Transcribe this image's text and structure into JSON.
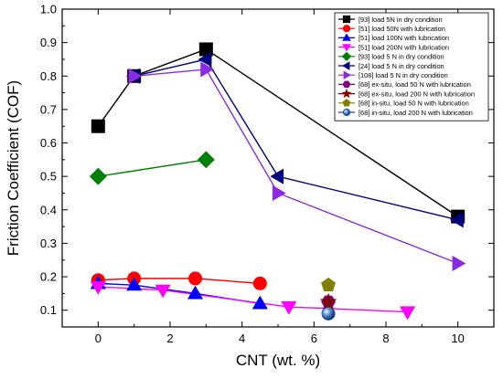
{
  "chart_data": {
    "type": "scatter",
    "xlabel": "CNT (wt. %)",
    "ylabel": "Friction Coefficient (COF)",
    "xlim": [
      -1,
      11
    ],
    "ylim": [
      0.05,
      1.0
    ],
    "x_ticks": [
      0,
      2,
      4,
      6,
      8,
      10
    ],
    "y_ticks": [
      0.1,
      0.2,
      0.3,
      0.4,
      0.5,
      0.6,
      0.7,
      0.8,
      0.9,
      1.0
    ],
    "x_tick_labels": [
      "0",
      "2",
      "4",
      "6",
      "8",
      "10"
    ],
    "y_tick_labels": [
      "0.1",
      "0.2",
      "0.3",
      "0.4",
      "0.5",
      "0.6",
      "0.7",
      "0.8",
      "0.9",
      "1.0"
    ],
    "grid": false,
    "legend_position": "top-right",
    "series": [
      {
        "name": "[93] load 5N in dry condition",
        "color": "#000000",
        "marker": "square",
        "x": [
          0,
          1,
          3,
          10
        ],
        "y": [
          0.65,
          0.8,
          0.88,
          0.38
        ]
      },
      {
        "name": "[51] load 50N with lubrication",
        "color": "#ff0000",
        "marker": "circle",
        "x": [
          0,
          1,
          2.7,
          4.5
        ],
        "y": [
          0.19,
          0.195,
          0.195,
          0.18
        ]
      },
      {
        "name": "[51] load 100N with lubrication",
        "color": "#0000ff",
        "marker": "triangle-up",
        "x": [
          0,
          1,
          2.7,
          4.5
        ],
        "y": [
          0.18,
          0.175,
          0.15,
          0.12
        ]
      },
      {
        "name": "[51] load 200N with lubrication",
        "color": "#ff00ff",
        "marker": "triangle-down",
        "x": [
          0,
          1.8,
          5.3,
          8.6
        ],
        "y": [
          0.17,
          0.16,
          0.11,
          0.095
        ]
      },
      {
        "name": "[93] load 5 N in dry condition",
        "color": "#008000",
        "marker": "diamond",
        "x": [
          0,
          3
        ],
        "y": [
          0.5,
          0.55
        ]
      },
      {
        "name": "[24] load 5 N in dry condition",
        "color": "#000080",
        "marker": "triangle-left",
        "x": [
          1,
          3,
          5,
          10
        ],
        "y": [
          0.8,
          0.85,
          0.5,
          0.37
        ]
      },
      {
        "name": "[108] load 5 N in dry condition",
        "color": "#8a2be2",
        "marker": "triangle-right",
        "x": [
          1,
          3,
          5,
          10
        ],
        "y": [
          0.8,
          0.82,
          0.45,
          0.24
        ]
      },
      {
        "name": "[68] ex-situ, load 50 N with lubrication",
        "color": "#800080",
        "marker": "hexagon",
        "x": [
          6.4
        ],
        "y": [
          0.125
        ]
      },
      {
        "name": "[68] ex-situ, load 200 N with lubrication",
        "color": "#800000",
        "marker": "star",
        "x": [
          6.4
        ],
        "y": [
          0.125
        ]
      },
      {
        "name": "[68] in-situ, load 50 N with lubrication",
        "color": "#808000",
        "marker": "pentagon",
        "x": [
          6.4
        ],
        "y": [
          0.175
        ]
      },
      {
        "name": "[68] in-situ, load 200 N with lubrication",
        "color": "#1f4e9a",
        "marker": "sphere",
        "x": [
          6.4
        ],
        "y": [
          0.09
        ]
      }
    ]
  }
}
